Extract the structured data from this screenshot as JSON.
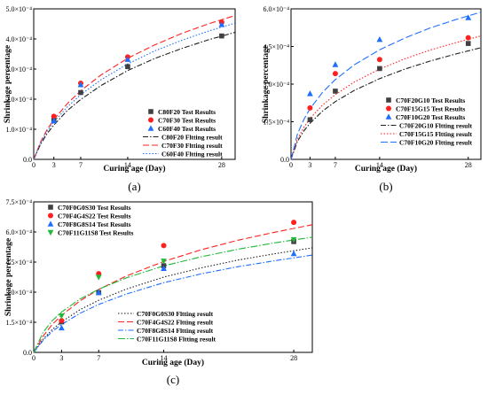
{
  "chart_data": [
    {
      "type": "scatter",
      "panel_label": "(a)",
      "xlabel": "Curing age (Day)",
      "ylabel": "Shrinkage percentage",
      "xlim": [
        0,
        30
      ],
      "ylim": [
        0,
        0.0005
      ],
      "xticks": [
        0,
        3,
        7,
        14,
        28
      ],
      "xtick_labels": [
        "0",
        "3",
        "7",
        "14",
        "28"
      ],
      "yticks": [
        0,
        0.0001,
        0.0002,
        0.0003,
        0.0004,
        0.0005
      ],
      "ytick_labels": [
        "0.0",
        "1.0×10⁻⁴",
        "2.0×10⁻⁴",
        "3.0×10⁻⁴",
        "4.0×10⁻⁴",
        "5.0×10⁻⁴"
      ],
      "legend_position": "bottom-right",
      "series": [
        {
          "name": "C80F20 Test Results",
          "kind": "points",
          "marker": "square",
          "color": "#404040",
          "x": [
            3,
            7,
            14,
            28
          ],
          "y": [
            0.00013,
            0.000222,
            0.000308,
            0.00041
          ]
        },
        {
          "name": "C70F30 Test Results",
          "kind": "points",
          "marker": "circle",
          "color": "#ff2020",
          "x": [
            3,
            7,
            14,
            28
          ],
          "y": [
            0.000143,
            0.000253,
            0.00034,
            0.000455
          ]
        },
        {
          "name": "C60F40 Test Results",
          "kind": "points",
          "marker": "triangle",
          "color": "#1f6fff",
          "x": [
            3,
            7,
            14,
            28
          ],
          "y": [
            0.000128,
            0.000248,
            0.000332,
            0.000448
          ]
        },
        {
          "name": "C80F20 Fltting result",
          "kind": "line",
          "dash": "6,2,1.5,2",
          "color": "#202020",
          "x": [
            0,
            1,
            2,
            3,
            5,
            7,
            10,
            14,
            18,
            22,
            26,
            30
          ],
          "y": [
            0,
            4.93e-05,
            8.56e-05,
            0.000114,
            0.000162,
            0.000199,
            0.000245,
            0.000295,
            0.000335,
            0.000368,
            0.000397,
            0.000422
          ]
        },
        {
          "name": "C70F30 Fltting result",
          "kind": "line",
          "dash": "7,3",
          "color": "#ff2020",
          "x": [
            0,
            1,
            2,
            3,
            5,
            7,
            10,
            14,
            18,
            22,
            26,
            30
          ],
          "y": [
            0,
            5.74e-05,
            9.91e-05,
            0.000132,
            0.000185,
            0.000228,
            0.00028,
            0.000336,
            0.00038,
            0.000418,
            0.00045,
            0.000478
          ]
        },
        {
          "name": "C60F40 Fltting result",
          "kind": "line",
          "dash": "1.5,2",
          "color": "#1f6fff",
          "x": [
            0,
            1,
            2,
            3,
            5,
            7,
            10,
            14,
            18,
            22,
            26,
            30
          ],
          "y": [
            0,
            5.39e-05,
            9.34e-05,
            0.000124,
            0.000174,
            0.000215,
            0.000264,
            0.000317,
            0.00036,
            0.000395,
            0.000426,
            0.000453
          ]
        }
      ]
    },
    {
      "type": "scatter",
      "panel_label": "(b)",
      "xlabel": "Curing age (Day)",
      "ylabel": "Shrinkage percentage",
      "xlim": [
        0,
        30
      ],
      "ylim": [
        0,
        0.0006
      ],
      "xticks": [
        0,
        3,
        7,
        14,
        28
      ],
      "xtick_labels": [
        "0",
        "3",
        "7",
        "14",
        "28"
      ],
      "yticks": [
        0,
        0.00015,
        0.0003,
        0.00045,
        0.0006
      ],
      "ytick_labels": [
        "0.0",
        "1.5×10⁻⁴",
        "3.0×10⁻⁴",
        "4.5×10⁻⁴",
        "6.0×10⁻⁴"
      ],
      "legend_position": "bottom-right",
      "series": [
        {
          "name": "C70F20G10 Test Results",
          "kind": "points",
          "marker": "square",
          "color": "#404040",
          "x": [
            3,
            7,
            14,
            28
          ],
          "y": [
            0.000158,
            0.000272,
            0.000362,
            0.000462
          ]
        },
        {
          "name": "C70F15G15 Test Results",
          "kind": "points",
          "marker": "circle",
          "color": "#ff2020",
          "x": [
            3,
            7,
            14,
            28
          ],
          "y": [
            0.000205,
            0.000342,
            0.000398,
            0.000485
          ]
        },
        {
          "name": "C70F10G20 Test Results",
          "kind": "points",
          "marker": "triangle",
          "color": "#1f6fff",
          "x": [
            3,
            7,
            14,
            28
          ],
          "y": [
            0.000262,
            0.000378,
            0.000478,
            0.000565
          ]
        },
        {
          "name": "C70F20G10 Fltting result",
          "kind": "line",
          "dash": "6,2,1.5,2",
          "color": "#202020",
          "x": [
            0,
            1,
            2,
            3,
            5,
            7,
            10,
            14,
            18,
            22,
            26,
            30
          ],
          "y": [
            0,
            7.05e-05,
            0.000113,
            0.000144,
            0.000193,
            0.00023,
            0.000275,
            0.000322,
            0.00036,
            0.000392,
            0.00042,
            0.000445
          ]
        },
        {
          "name": "C70F15G15 Fltting result",
          "kind": "line",
          "dash": "1.5,2",
          "color": "#ff2020",
          "x": [
            0,
            1,
            2,
            3,
            5,
            7,
            10,
            14,
            18,
            22,
            26,
            30
          ],
          "y": [
            0,
            7.96e-05,
            0.000127,
            0.000163,
            0.000217,
            0.000258,
            0.000308,
            0.00036,
            0.000401,
            0.000436,
            0.000465,
            0.000492
          ]
        },
        {
          "name": "C70F10G20 Fltting result",
          "kind": "line",
          "dash": "8,3",
          "color": "#1f6fff",
          "x": [
            0,
            1,
            2,
            3,
            5,
            7,
            10,
            14,
            18,
            22,
            26,
            30
          ],
          "y": [
            0,
            9.92e-05,
            0.000158,
            0.000202,
            0.000268,
            0.000318,
            0.000377,
            0.000437,
            0.000484,
            0.000524,
            0.000557,
            0.000587
          ]
        }
      ]
    },
    {
      "type": "scatter",
      "panel_label": "(c)",
      "xlabel": "Curing age (Day)",
      "ylabel": "Shrinkage percentage",
      "xlim": [
        0,
        30
      ],
      "ylim": [
        0,
        0.00075
      ],
      "xticks": [
        0,
        3,
        7,
        14,
        28
      ],
      "xtick_labels": [
        "0",
        "3",
        "7",
        "14",
        "28"
      ],
      "yticks": [
        0,
        0.00015,
        0.0003,
        0.00045,
        0.0006,
        0.00075
      ],
      "ytick_labels": [
        "0.0",
        "1.5×10⁻⁴",
        "3.0×10⁻⁴",
        "4.5×10⁻⁴",
        "6.0×10⁻⁴",
        "7.5×10⁻⁴"
      ],
      "legend_points_position": "top-left",
      "legend_lines_position": "bottom-right",
      "series": [
        {
          "name": "C70F0G0S30 Test Results",
          "kind": "points",
          "marker": "square",
          "color": "#404040",
          "x": [
            3,
            7,
            14,
            28
          ],
          "y": [
            0.000152,
            0.000298,
            0.000432,
            0.000552
          ]
        },
        {
          "name": "C70F4G4S22 Test Results",
          "kind": "points",
          "marker": "circle",
          "color": "#ff2020",
          "x": [
            3,
            7,
            14,
            28
          ],
          "y": [
            0.000158,
            0.000392,
            0.000532,
            0.000648
          ]
        },
        {
          "name": "C70F8G8S14 Test Results",
          "kind": "points",
          "marker": "triangle",
          "color": "#1f6fff",
          "x": [
            3,
            7,
            14,
            28
          ],
          "y": [
            0.000122,
            0.000298,
            0.000418,
            0.000492
          ]
        },
        {
          "name": "C70F11G11S8 Test Results",
          "kind": "points",
          "marker": "triangle-down",
          "color": "#22b83a",
          "x": [
            3,
            7,
            14,
            28
          ],
          "y": [
            0.000182,
            0.000375,
            0.000455,
            0.000562
          ]
        },
        {
          "name": "C70F0G0S30 Fltting result",
          "kind": "line",
          "dash": "1.5,2",
          "color": "#202020",
          "x": [
            0,
            1,
            2,
            3,
            5,
            7,
            10,
            14,
            18,
            22,
            26,
            30
          ],
          "y": [
            0,
            6.55e-05,
            0.000114,
            0.000152,
            0.000213,
            0.00026,
            0.000316,
            0.000375,
            0.000421,
            0.00046,
            0.000492,
            0.000521
          ]
        },
        {
          "name": "C70F4G4S22 Fltting result",
          "kind": "line",
          "dash": "7,3",
          "color": "#ff2020",
          "x": [
            0,
            1,
            2,
            3,
            5,
            7,
            10,
            14,
            18,
            22,
            26,
            30
          ],
          "y": [
            0,
            8.06e-05,
            0.000139,
            0.000185,
            0.000257,
            0.000314,
            0.000381,
            0.000453,
            0.000511,
            0.000559,
            0.000599,
            0.000636
          ]
        },
        {
          "name": "C70F8G8S14 Fltting result",
          "kind": "line",
          "dash": "6,2,1.5,2",
          "color": "#1f6fff",
          "x": [
            0,
            1,
            2,
            3,
            5,
            7,
            10,
            14,
            18,
            22,
            26,
            30
          ],
          "y": [
            0,
            5.94e-05,
            0.000104,
            0.000139,
            0.000195,
            0.000239,
            0.000291,
            0.000347,
            0.000391,
            0.000427,
            0.000457,
            0.000485
          ]
        },
        {
          "name": "C70F11G11S8 Fltting result",
          "kind": "line",
          "dash": "8,2,1.5,2",
          "color": "#22b83a",
          "x": [
            0,
            1,
            2,
            3,
            5,
            7,
            10,
            14,
            18,
            22,
            26,
            30
          ],
          "y": [
            0,
            9.96e-05,
            0.000158,
            0.000201,
            0.000266,
            0.000315,
            0.000372,
            0.000431,
            0.000476,
            0.000514,
            0.000546,
            0.000574
          ]
        }
      ]
    }
  ]
}
